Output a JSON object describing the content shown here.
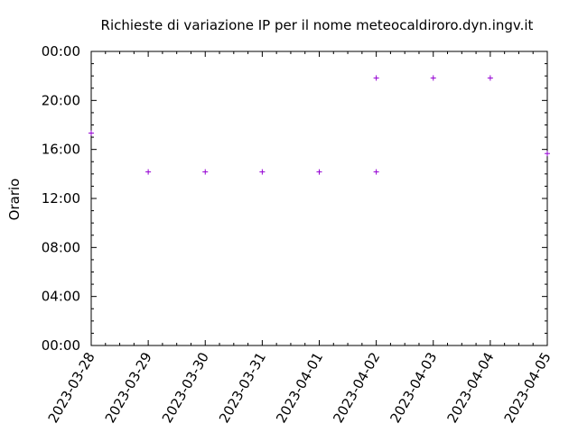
{
  "chart_data": {
    "type": "scatter",
    "title": "Richieste di variazione IP per il nome meteocaldiroro.dyn.ingv.it",
    "xlabel": "",
    "ylabel": "Orario",
    "x_ticks": [
      "2023-03-28",
      "2023-03-29",
      "2023-03-30",
      "2023-03-31",
      "2023-04-01",
      "2023-04-02",
      "2023-04-03",
      "2023-04-04",
      "2023-04-05"
    ],
    "y_ticks": [
      "00:00",
      "04:00",
      "08:00",
      "12:00",
      "16:00",
      "20:00",
      "00:00"
    ],
    "xlim": [
      "2023-03-28",
      "2023-04-05"
    ],
    "ylim": [
      0,
      24
    ],
    "grid": false,
    "marker": "+",
    "color": "#9400d3",
    "points": [
      {
        "date": "2023-03-28",
        "time": "17:20"
      },
      {
        "date": "2023-03-29",
        "time": "14:10"
      },
      {
        "date": "2023-03-30",
        "time": "14:10"
      },
      {
        "date": "2023-03-31",
        "time": "14:10"
      },
      {
        "date": "2023-04-01",
        "time": "14:10"
      },
      {
        "date": "2023-04-02",
        "time": "14:10"
      },
      {
        "date": "2023-04-02",
        "time": "21:50"
      },
      {
        "date": "2023-04-03",
        "time": "21:50"
      },
      {
        "date": "2023-04-04",
        "time": "21:50"
      },
      {
        "date": "2023-04-05",
        "time": "15:40"
      }
    ]
  }
}
